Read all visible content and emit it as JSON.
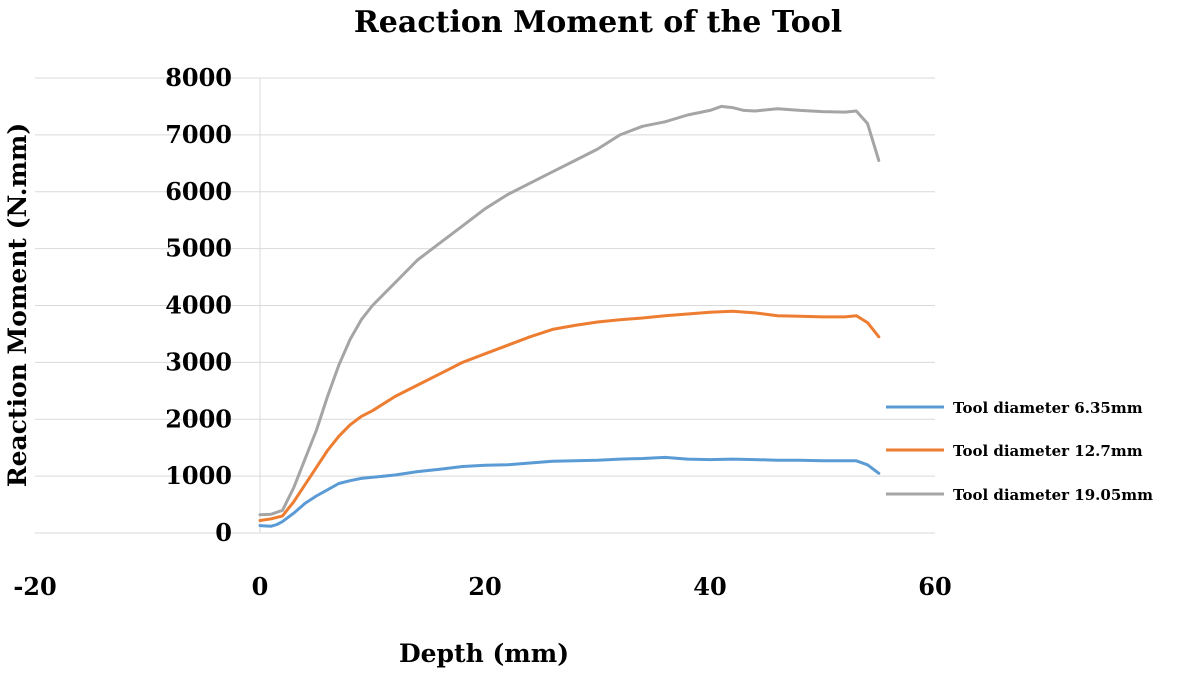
{
  "chart_data": {
    "type": "line",
    "title": "Reaction Moment of the Tool",
    "xlabel": "Depth (mm)",
    "ylabel": "Reaction Moment (N.mm)",
    "xlim": [
      -20,
      60
    ],
    "ylim": [
      0,
      8000
    ],
    "xticks": [
      -20,
      0,
      20,
      40,
      60
    ],
    "yticks": [
      0,
      1000,
      2000,
      3000,
      4000,
      5000,
      6000,
      7000,
      8000
    ],
    "grid": true,
    "legend_position": "right",
    "series": [
      {
        "name": "Tool diameter 6.35mm",
        "color": "#5b9bd5",
        "points": [
          [
            0,
            130
          ],
          [
            1,
            120
          ],
          [
            1.5,
            150
          ],
          [
            2,
            200
          ],
          [
            3,
            350
          ],
          [
            4,
            520
          ],
          [
            5,
            650
          ],
          [
            6,
            760
          ],
          [
            7,
            870
          ],
          [
            8,
            920
          ],
          [
            9,
            960
          ],
          [
            10,
            980
          ],
          [
            12,
            1020
          ],
          [
            14,
            1080
          ],
          [
            16,
            1120
          ],
          [
            18,
            1170
          ],
          [
            20,
            1190
          ],
          [
            22,
            1200
          ],
          [
            24,
            1230
          ],
          [
            26,
            1260
          ],
          [
            28,
            1270
          ],
          [
            30,
            1280
          ],
          [
            32,
            1300
          ],
          [
            34,
            1310
          ],
          [
            36,
            1330
          ],
          [
            38,
            1300
          ],
          [
            40,
            1290
          ],
          [
            42,
            1300
          ],
          [
            44,
            1290
          ],
          [
            46,
            1280
          ],
          [
            48,
            1280
          ],
          [
            50,
            1270
          ],
          [
            52,
            1270
          ],
          [
            53,
            1270
          ],
          [
            54,
            1200
          ],
          [
            55,
            1050
          ]
        ]
      },
      {
        "name": "Tool diameter 12.7mm",
        "color": "#ed7d31",
        "points": [
          [
            0,
            220
          ],
          [
            1,
            250
          ],
          [
            2,
            300
          ],
          [
            3,
            550
          ],
          [
            4,
            850
          ],
          [
            5,
            1150
          ],
          [
            6,
            1450
          ],
          [
            7,
            1700
          ],
          [
            8,
            1900
          ],
          [
            9,
            2050
          ],
          [
            10,
            2150
          ],
          [
            12,
            2400
          ],
          [
            14,
            2600
          ],
          [
            16,
            2800
          ],
          [
            18,
            3000
          ],
          [
            20,
            3150
          ],
          [
            22,
            3300
          ],
          [
            24,
            3450
          ],
          [
            26,
            3580
          ],
          [
            28,
            3650
          ],
          [
            30,
            3710
          ],
          [
            32,
            3750
          ],
          [
            34,
            3780
          ],
          [
            36,
            3820
          ],
          [
            38,
            3850
          ],
          [
            40,
            3880
          ],
          [
            42,
            3900
          ],
          [
            44,
            3870
          ],
          [
            46,
            3820
          ],
          [
            48,
            3810
          ],
          [
            50,
            3800
          ],
          [
            52,
            3800
          ],
          [
            53,
            3820
          ],
          [
            54,
            3700
          ],
          [
            55,
            3450
          ]
        ]
      },
      {
        "name": "Tool diameter 19.05mm",
        "color": "#a5a5a5",
        "points": [
          [
            0,
            320
          ],
          [
            1,
            330
          ],
          [
            2,
            400
          ],
          [
            3,
            800
          ],
          [
            4,
            1300
          ],
          [
            5,
            1800
          ],
          [
            6,
            2400
          ],
          [
            7,
            2950
          ],
          [
            8,
            3400
          ],
          [
            9,
            3750
          ],
          [
            10,
            4000
          ],
          [
            12,
            4400
          ],
          [
            14,
            4800
          ],
          [
            16,
            5100
          ],
          [
            18,
            5400
          ],
          [
            20,
            5700
          ],
          [
            22,
            5950
          ],
          [
            24,
            6150
          ],
          [
            26,
            6350
          ],
          [
            28,
            6550
          ],
          [
            30,
            6750
          ],
          [
            32,
            7000
          ],
          [
            34,
            7150
          ],
          [
            36,
            7230
          ],
          [
            38,
            7350
          ],
          [
            40,
            7430
          ],
          [
            41,
            7500
          ],
          [
            42,
            7480
          ],
          [
            43,
            7430
          ],
          [
            44,
            7420
          ],
          [
            46,
            7460
          ],
          [
            48,
            7430
          ],
          [
            50,
            7410
          ],
          [
            52,
            7400
          ],
          [
            53,
            7420
          ],
          [
            54,
            7200
          ],
          [
            55,
            6550
          ]
        ]
      }
    ]
  }
}
